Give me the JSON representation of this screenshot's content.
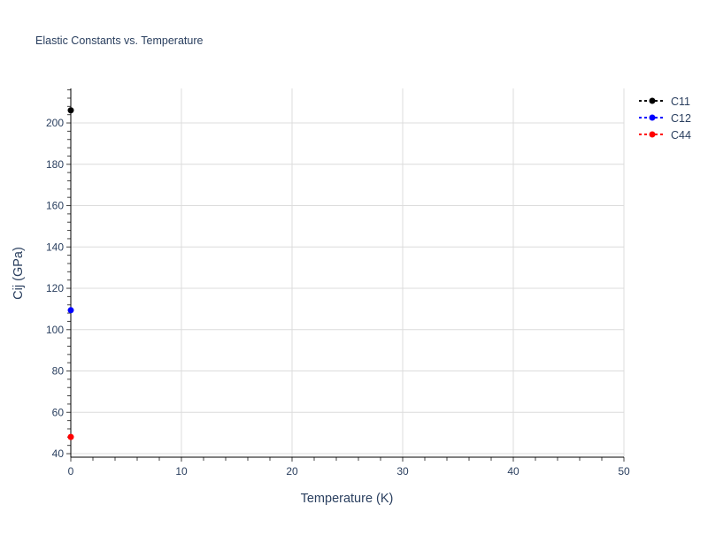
{
  "chart_data": {
    "type": "line",
    "title": "Elastic Constants vs. Temperature",
    "xlabel": "Temperature (K)",
    "ylabel": "Cij (GPa)",
    "xlim": [
      0,
      50
    ],
    "ylim": [
      38.3,
      216.7
    ],
    "xticks": [
      0,
      10,
      20,
      30,
      40,
      50
    ],
    "yticks": [
      40,
      60,
      80,
      100,
      120,
      140,
      160,
      180,
      200
    ],
    "grid": true,
    "legend": "top-right",
    "series": [
      {
        "name": "C11",
        "color": "#000000",
        "x": [
          0
        ],
        "y": [
          206.1
        ]
      },
      {
        "name": "C12",
        "color": "#0000ff",
        "x": [
          0
        ],
        "y": [
          109.4
        ]
      },
      {
        "name": "C44",
        "color": "#ff0000",
        "x": [
          0
        ],
        "y": [
          48.1
        ]
      }
    ]
  }
}
